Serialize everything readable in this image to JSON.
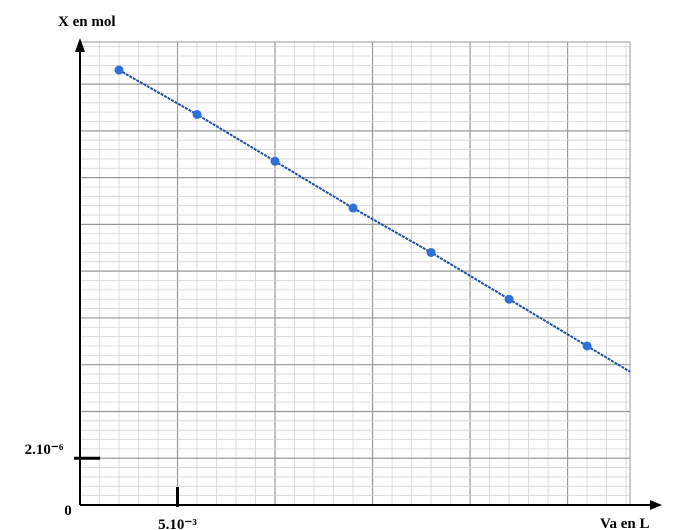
{
  "chart_data": {
    "type": "line",
    "ylabel": "X en mol",
    "xlabel": "Va en L",
    "x": [
      0.002,
      0.006,
      0.01,
      0.014,
      0.018,
      0.022,
      0.026
    ],
    "series": [
      {
        "color": "#1f4fa8",
        "values": [
          1.86e-05,
          1.67e-05,
          1.47e-05,
          1.27e-05,
          1.08e-05,
          8.8e-06,
          6.8e-06
        ]
      }
    ],
    "xlim": [
      0,
      0.0282
    ],
    "ylim": [
      0,
      1.98e-05
    ],
    "xticks": [
      {
        "value": 0,
        "label": "0"
      },
      {
        "value": 0.005,
        "label": "5.10⁻³"
      }
    ],
    "yticks": [
      {
        "value": 2e-06,
        "label": "2.10⁻⁶"
      }
    ],
    "grid": true
  }
}
